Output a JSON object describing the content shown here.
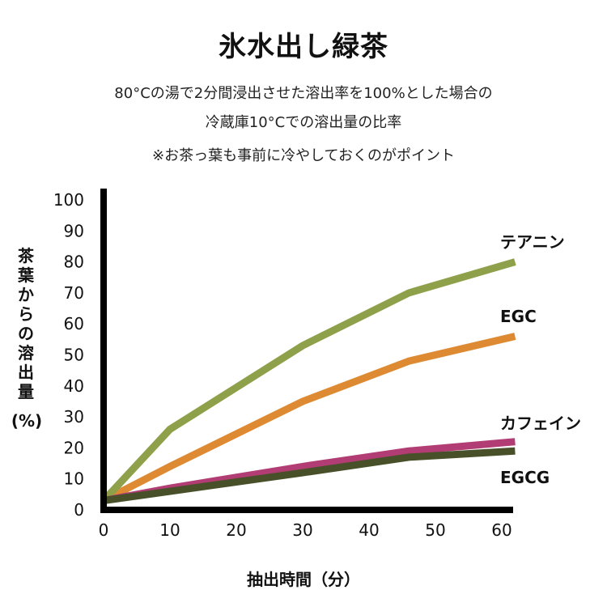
{
  "title": "氷水出し緑茶",
  "subtitle_line1": "80°Cの湯で2分間浸出させた溶出率を100%とした場合の",
  "subtitle_line2": "冷蔵庫10°Cでの溶出量の比率",
  "note": "※お茶っ葉も事前に冷やしておくのがポイント",
  "chart_data": {
    "type": "line",
    "xlabel": "抽出時間（分）",
    "ylabel": "茶葉からの溶出量",
    "yunit": "(%)",
    "xlim": [
      0,
      60
    ],
    "ylim": [
      0,
      100
    ],
    "xticks": [
      "0",
      "10",
      "20",
      "30",
      "40",
      "50",
      "60"
    ],
    "yticks": [
      "0",
      "10",
      "20",
      "30",
      "40",
      "50",
      "60",
      "70",
      "80",
      "90",
      "100"
    ],
    "grid": false,
    "legend": "direct labels at line ends",
    "series": [
      {
        "name": "テアニン",
        "color": "#8fa04a",
        "x": [
          0,
          10,
          30,
          46,
          62
        ],
        "y": [
          3,
          26,
          53,
          70,
          80
        ]
      },
      {
        "name": "EGC",
        "color": "#dd8a33",
        "x": [
          0,
          10,
          30,
          46,
          62
        ],
        "y": [
          3,
          14,
          35,
          48,
          56
        ]
      },
      {
        "name": "カフェイン",
        "color": "#b23d74",
        "x": [
          0,
          10,
          30,
          46,
          62
        ],
        "y": [
          3,
          7,
          14,
          19,
          22
        ]
      },
      {
        "name": "EGCG",
        "color": "#48502a",
        "x": [
          0,
          10,
          30,
          46,
          62
        ],
        "y": [
          3,
          6,
          12,
          17,
          19
        ]
      }
    ]
  }
}
